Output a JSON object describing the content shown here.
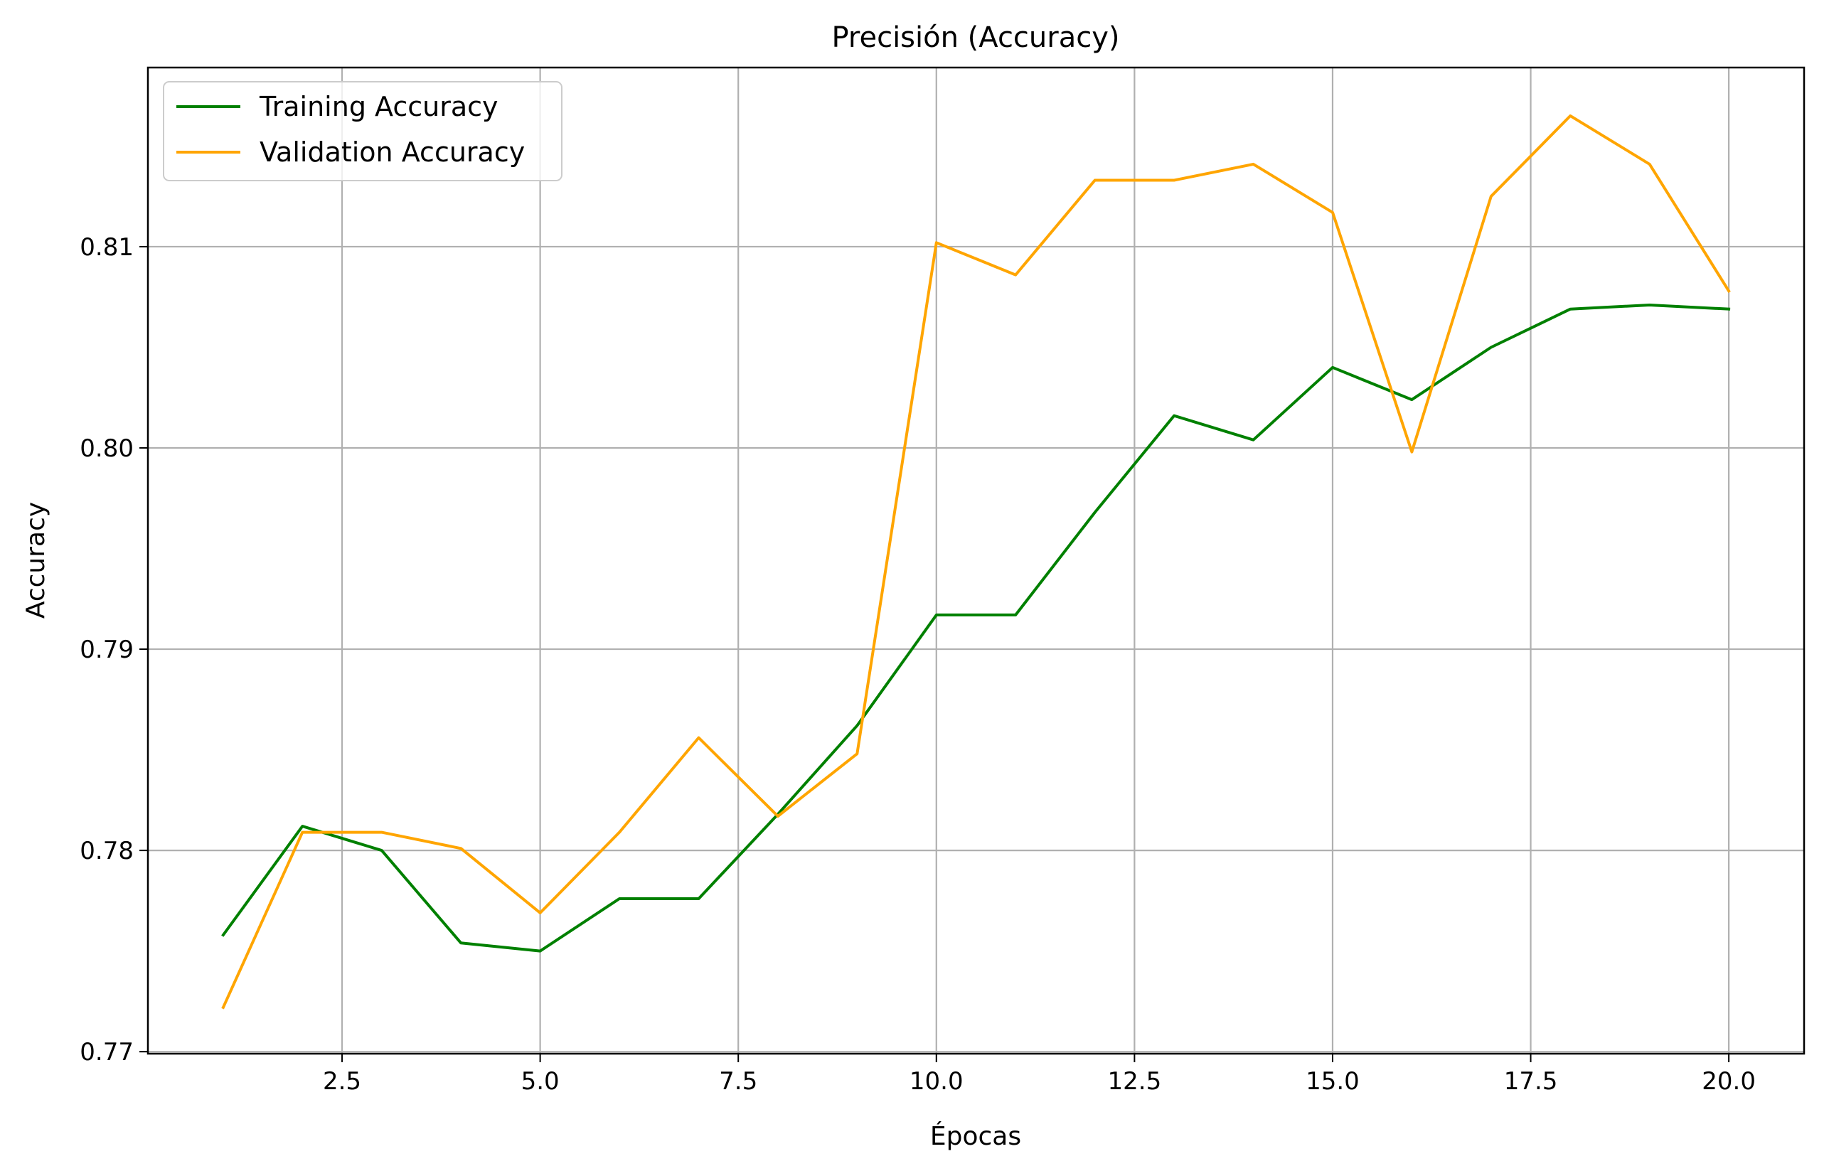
{
  "chart_data": {
    "type": "line",
    "title": "Precisión (Accuracy)",
    "xlabel": "Épocas",
    "ylabel": "Accuracy",
    "xlim": [
      0.05,
      20.95
    ],
    "ylim": [
      0.7699,
      0.8189
    ],
    "xticks": [
      2.5,
      5.0,
      7.5,
      10.0,
      12.5,
      15.0,
      17.5,
      20.0
    ],
    "xtick_labels": [
      "2.5",
      "5.0",
      "7.5",
      "10.0",
      "12.5",
      "15.0",
      "17.5",
      "20.0"
    ],
    "yticks": [
      0.77,
      0.78,
      0.79,
      0.8,
      0.81
    ],
    "ytick_labels": [
      "0.77",
      "0.78",
      "0.79",
      "0.80",
      "0.81"
    ],
    "grid": true,
    "legend_position": "top-left",
    "x": [
      1,
      2,
      3,
      4,
      5,
      6,
      7,
      8,
      9,
      10,
      11,
      12,
      13,
      14,
      15,
      16,
      17,
      18,
      19,
      20
    ],
    "series": [
      {
        "name": "Training Accuracy",
        "color": "#008000",
        "values": [
          0.7758,
          0.7812,
          0.78,
          0.7754,
          0.775,
          0.7776,
          0.7776,
          0.7818,
          0.7862,
          0.7917,
          0.7917,
          0.7968,
          0.8016,
          0.8004,
          0.804,
          0.8024,
          0.805,
          0.8069,
          0.8071,
          0.8069
        ]
      },
      {
        "name": "Validation Accuracy",
        "color": "#FFA500",
        "values": [
          0.7722,
          0.7809,
          0.7809,
          0.7801,
          0.7769,
          0.7809,
          0.7856,
          0.7817,
          0.7848,
          0.8102,
          0.8086,
          0.8133,
          0.8133,
          0.8141,
          0.8117,
          0.7998,
          0.8125,
          0.8165,
          0.8141,
          0.8078
        ]
      }
    ]
  }
}
